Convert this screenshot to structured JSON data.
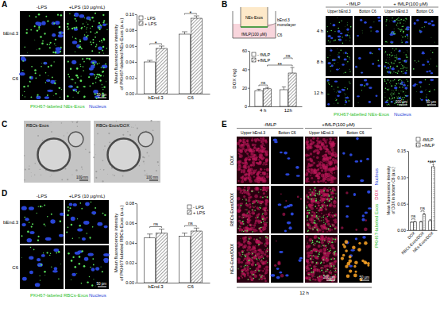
{
  "chart_data": [
    {
      "type": "bar",
      "categories": [
        "bEnd.3",
        "C6"
      ],
      "series": [
        {
          "name": "- LPS",
          "color": "#ffffff",
          "values": [
            0.04,
            0.075
          ],
          "errors": [
            0.002,
            0.003
          ]
        },
        {
          "name": "+ LPS",
          "color": "#ffffff",
          "marker": "hatch",
          "values": [
            0.057,
            0.095
          ],
          "errors": [
            0.003,
            0.003
          ]
        }
      ],
      "ylabel": [
        "Mean fluorescence intensity",
        "of PKH67-labeled NEs-Exos (a.u.)"
      ],
      "ylim": [
        0,
        0.1
      ],
      "yticks": [
        {
          "value": 0,
          "label": "0.00"
        },
        {
          "value": 0.02,
          "label": "0.02"
        },
        {
          "value": 0.04,
          "label": "0.04"
        },
        {
          "value": 0.06,
          "label": "0.06"
        },
        {
          "value": 0.08,
          "label": "0.08"
        },
        {
          "value": 0.1,
          "label": "0.10"
        }
      ],
      "legend": "top-left",
      "comparisons": [
        {
          "text": "*",
          "from": [
            "bEnd.3",
            "- LPS"
          ],
          "to": [
            "bEnd.3",
            "+ LPS"
          ]
        },
        {
          "text": "*",
          "from": [
            "C6",
            "- LPS"
          ],
          "to": [
            "C6",
            "+ LPS"
          ]
        }
      ]
    },
    {
      "type": "bar",
      "categories": [
        "4 h",
        "12h"
      ],
      "series": [
        {
          "name": "- fMLP",
          "color": "#ffffff",
          "values": [
            17,
            18
          ],
          "errors": [
            1.5,
            3
          ]
        },
        {
          "name": "+fMLP",
          "color": "#ffffff",
          "marker": "hatch",
          "values": [
            19,
            36
          ],
          "errors": [
            1.5,
            6
          ]
        }
      ],
      "ylabel": [
        "DOX (ng)"
      ],
      "ylim": [
        0,
        60
      ],
      "yticks": [
        0,
        20,
        40,
        60
      ],
      "legend": "top-left",
      "comparisons": [
        {
          "text": "ns",
          "from": [
            "4 h",
            "- fMLP"
          ],
          "to": [
            "4 h",
            "+fMLP"
          ]
        },
        {
          "text": "**",
          "from": [
            "4 h",
            "+fMLP"
          ],
          "to": [
            "12h",
            "+fMLP"
          ]
        },
        {
          "text": "ns",
          "from": [
            "12h",
            "- fMLP"
          ],
          "to": [
            "12h",
            "+fMLP"
          ]
        }
      ]
    },
    {
      "type": "bar",
      "categories": [
        "bEnd.3",
        "C6"
      ],
      "series": [
        {
          "name": "- LPS",
          "color": "#ffffff",
          "values": [
            0.045,
            0.047
          ],
          "errors": [
            0.004,
            0.003
          ]
        },
        {
          "name": "+ LPS",
          "color": "#ffffff",
          "marker": "hatch",
          "values": [
            0.05,
            0.052
          ],
          "errors": [
            0.004,
            0.003
          ]
        }
      ],
      "ylabel": [
        "Mean fluorescence intensity",
        "of PKH67-labeled RBCs-Exos (a.u.)"
      ],
      "ylim": [
        0,
        0.08
      ],
      "yticks": [
        {
          "value": 0,
          "label": "0.00"
        },
        {
          "value": 0.02,
          "label": "0.02"
        },
        {
          "value": 0.04,
          "label": "0.04"
        },
        {
          "value": 0.06,
          "label": "0.06"
        },
        {
          "value": 0.08,
          "label": "0.08"
        }
      ],
      "legend": "top-right",
      "comparisons": [
        {
          "text": "ns",
          "from": [
            "bEnd.3",
            "- LPS"
          ],
          "to": [
            "bEnd.3",
            "+ LPS"
          ]
        },
        {
          "text": "ns",
          "from": [
            "C6",
            "- LPS"
          ],
          "to": [
            "C6",
            "+ LPS"
          ]
        }
      ]
    },
    {
      "type": "bar",
      "categories": [
        "DOX",
        "RBCs-Exos/DOX",
        "NEs-Exos/DOX"
      ],
      "series": [
        {
          "name": "-fMLP",
          "color": "#ffffff",
          "values": [
            0.015,
            0.016,
            0.018
          ],
          "errors": [
            0.001,
            0.001,
            0.002
          ]
        },
        {
          "name": "+fMLP",
          "color": "#ffffff",
          "marker": "dots",
          "values": [
            0.016,
            0.03,
            0.12
          ],
          "errors": [
            0.001,
            0.002,
            0.004
          ]
        }
      ],
      "ylabel": [
        "Mean fluorescence intensity",
        "of DOX in bottom C6 (a.u.)"
      ],
      "ylim": [
        0,
        0.15
      ],
      "yticks": [
        {
          "value": 0,
          "label": "0.00"
        },
        {
          "value": 0.05,
          "label": "0.05"
        },
        {
          "value": 0.1,
          "label": "0.10"
        },
        {
          "value": 0.15,
          "label": "0.15"
        }
      ],
      "legend": "top",
      "comparisons": [
        {
          "text": "ns",
          "from": [
            "DOX",
            "-fMLP"
          ],
          "to": [
            "DOX",
            "+fMLP"
          ]
        },
        {
          "text": "ns",
          "from": [
            "RBCs-Exos/DOX",
            "-fMLP"
          ],
          "to": [
            "RBCs-Exos/DOX",
            "+fMLP"
          ]
        },
        {
          "text": "****",
          "from": [
            "NEs-Exos/DOX",
            "-fMLP"
          ],
          "to": [
            "NEs-Exos/DOX",
            "+fMLP"
          ]
        }
      ]
    }
  ],
  "figure": {
    "A": {
      "label": "A",
      "columns": [
        "-LPS",
        "+LPS (10 μg/mL)"
      ],
      "rows": [
        "bEnd.3",
        "C6"
      ],
      "scale_bar": "50 μm",
      "caption": [
        "PKH67-labeled NEs-Exos",
        "Nucleus"
      ]
    },
    "B": {
      "label": "B",
      "diagram": {
        "insert": "NEs-Exos",
        "membrane": [
          "bEnd.3",
          "monolayer"
        ],
        "well": "C6",
        "medium": "fMLP(100 μM)"
      },
      "groups": [
        {
          "title": "- fMLP",
          "columns": [
            "Upper bEnd.3",
            "Botton C6"
          ]
        },
        {
          "title": "+ fMLP(100 μM)",
          "columns": [
            "Upper bEnd.3",
            "Botton C6"
          ]
        }
      ],
      "rows": [
        "4 h",
        "8 h",
        "12 h"
      ],
      "scale_bars": [
        "200 μm",
        "50 μm"
      ],
      "caption": [
        "PKH67-labelled NEs-Exos",
        "Nucleus"
      ]
    },
    "C": {
      "label": "C",
      "images": [
        {
          "title": "RBCs-Exos",
          "scale_bar": "100 nm"
        },
        {
          "title": "RBCs-Exos/DOX",
          "scale_bar": "100 nm"
        }
      ]
    },
    "D": {
      "label": "D",
      "columns": [
        "-LPS",
        "+LPS (10 μg/mL)"
      ],
      "rows": [
        "bEnd.3",
        "C6"
      ],
      "scale_bar": "50 μm",
      "caption": [
        "PKH67-labeled RBCs-Exos",
        "Nucleus"
      ]
    },
    "E": {
      "label": "E",
      "groups": [
        {
          "title": "-fMLP",
          "columns": [
            "Upper bEnd.3",
            "Botton C6"
          ]
        },
        {
          "title": "+fMLP(100 μM)",
          "columns": [
            "Upper bEnd.3",
            "Botton C6"
          ]
        }
      ],
      "rows": [
        "DOX",
        "RBCs-Exos/DOX",
        "NEs-Exos/DOX"
      ],
      "scale_bars": [
        "200 μm",
        "50 μm"
      ],
      "time": "12 h",
      "channels": [
        "PKH67-labeled Exos",
        "DOX",
        "Nucleus"
      ]
    }
  }
}
